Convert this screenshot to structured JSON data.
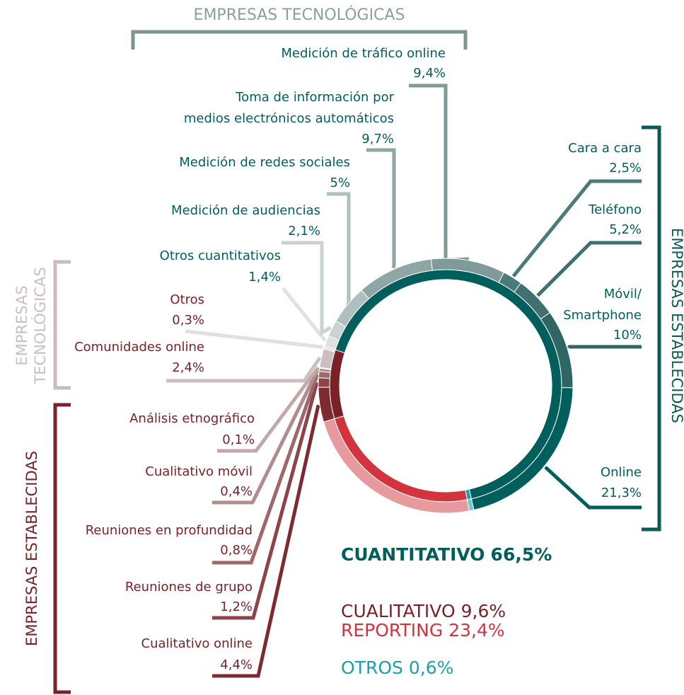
{
  "brackets": {
    "top": "EMPRESAS TECNOLÓGICAS",
    "right": "EMPRESAS ESTABLECIDAS",
    "left_top": [
      "EMPRESAS",
      "TECNOLÓGICAS"
    ],
    "left_bottom": "EMPRESAS ESTABLECIDAS"
  },
  "chart_data": {
    "type": "donut",
    "groups": [
      {
        "name": "CUANTITATIVO",
        "value": 66.5,
        "value_label": "66,5%",
        "color": "#005f5d",
        "segments": [
          {
            "label": [
              "Otros cuantitativos"
            ],
            "value": 1.4,
            "value_label": "1,4%",
            "color": "#dde3e2"
          },
          {
            "label": [
              "Medición de audiencias"
            ],
            "value": 2.1,
            "value_label": "2,1%",
            "color": "#c8d3d2"
          },
          {
            "label": [
              "Medición de redes sociales"
            ],
            "value": 5,
            "value_label": "5%",
            "color": "#aebfbe"
          },
          {
            "label": [
              "Toma de información por",
              "medios electrónicos automáticos"
            ],
            "value": 9.7,
            "value_label": "9,7%",
            "color": "#8ea6a4"
          },
          {
            "label": [
              "Medición de tráfico online"
            ],
            "value": 9.4,
            "value_label": "9,4%",
            "color": "#7f9b99"
          },
          {
            "label": [
              "Cara a cara"
            ],
            "value": 2.5,
            "value_label": "2,5%",
            "color": "#4a7a79"
          },
          {
            "label": [
              "Teléfono"
            ],
            "value": 5.2,
            "value_label": "5,2%",
            "color": "#40706f"
          },
          {
            "label": [
              "Móvil/",
              "Smartphone"
            ],
            "value": 10,
            "value_label": "10%",
            "color": "#2f6665"
          },
          {
            "label": [
              "Online"
            ],
            "value": 21.3,
            "value_label": "21,3%",
            "color": "#005f5d"
          }
        ]
      },
      {
        "name": "OTROS",
        "value": 0.6,
        "value_label": "0,6%",
        "color": "#1aa0ad",
        "outer_color": "#72c9d1",
        "segments": []
      },
      {
        "name": "REPORTING",
        "value": 23.4,
        "value_label": "23,4%",
        "color": "#d2343f",
        "outer_color": "#e79a9e",
        "segments": []
      },
      {
        "name": "CUALITATIVO",
        "value": 9.6,
        "value_label": "9,6%",
        "color": "#7a2228",
        "segments": [
          {
            "label": [
              "Cualitativo online"
            ],
            "value": 4.4,
            "value_label": "4,4%",
            "color": "#7d2a30"
          },
          {
            "label": [
              "Reuniones de grupo"
            ],
            "value": 1.2,
            "value_label": "1,2%",
            "color": "#8d4449"
          },
          {
            "label": [
              "Reuniones en profundidad"
            ],
            "value": 0.8,
            "value_label": "0,8%",
            "color": "#a0676b"
          },
          {
            "label": [
              "Cualitativo móvil"
            ],
            "value": 0.4,
            "value_label": "0,4%",
            "color": "#b08c8e"
          },
          {
            "label": [
              "Análisis etnográfico"
            ],
            "value": 0.1,
            "value_label": "0,1%",
            "color": "#c2a8a9"
          },
          {
            "label": [
              "Comunidades online"
            ],
            "value": 2.4,
            "value_label": "2,4%",
            "color": "#cdbfc0"
          },
          {
            "label": [
              "Otros"
            ],
            "value": 0.3,
            "value_label": "0,3%",
            "color": "#e6dede"
          }
        ]
      }
    ]
  }
}
